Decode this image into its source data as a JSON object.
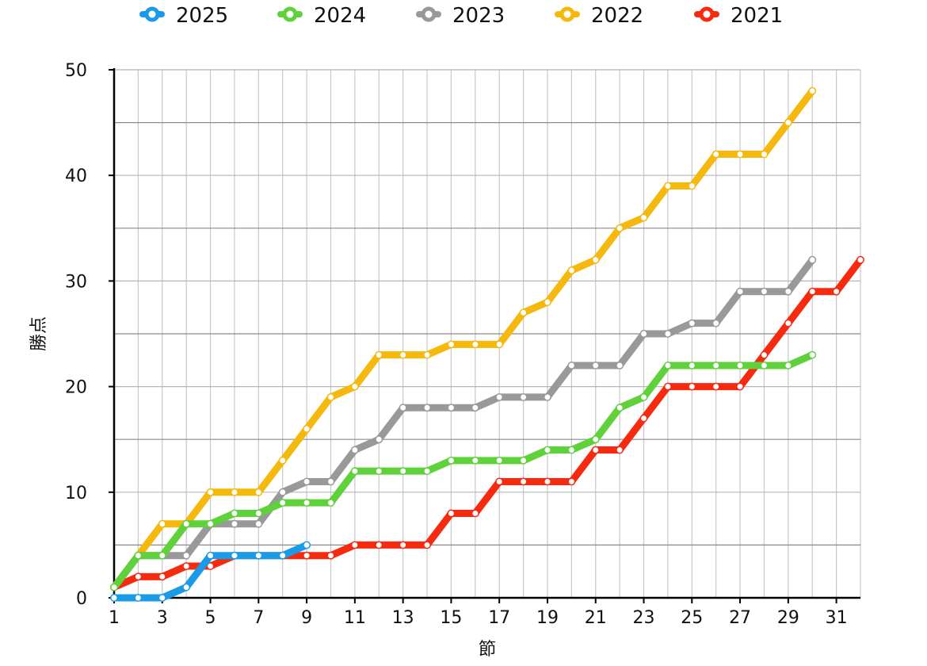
{
  "chart_data": {
    "type": "line",
    "xlabel": "節",
    "ylabel": "勝点",
    "xlim": [
      1,
      32
    ],
    "ylim": [
      0,
      50
    ],
    "y_ticks": [
      "0",
      "10",
      "20",
      "30",
      "40",
      "50"
    ],
    "x_ticks": [
      "1",
      "3",
      "5",
      "7",
      "9",
      "11",
      "13",
      "15",
      "17",
      "19",
      "21",
      "23",
      "25",
      "27",
      "29",
      "31"
    ],
    "grid": true,
    "legend_position": "top",
    "series": [
      {
        "name": "2025",
        "color": "#1a9be8",
        "values": [
          0,
          0,
          0,
          1,
          4,
          4,
          4,
          4,
          5
        ]
      },
      {
        "name": "2024",
        "color": "#5fd13a",
        "values": [
          1,
          4,
          4,
          7,
          7,
          8,
          8,
          9,
          9,
          9,
          12,
          12,
          12,
          12,
          13,
          13,
          13,
          13,
          14,
          14,
          15,
          18,
          19,
          22,
          22,
          22,
          22,
          22,
          22,
          23
        ]
      },
      {
        "name": "2023",
        "color": "#999999",
        "values": [
          1,
          4,
          4,
          4,
          7,
          7,
          7,
          10,
          11,
          11,
          14,
          15,
          18,
          18,
          18,
          18,
          19,
          19,
          19,
          22,
          22,
          22,
          25,
          25,
          26,
          26,
          29,
          29,
          29,
          32
        ]
      },
      {
        "name": "2022",
        "color": "#f5b80c",
        "values": [
          1,
          4,
          7,
          7,
          10,
          10,
          10,
          13,
          16,
          19,
          20,
          23,
          23,
          23,
          24,
          24,
          24,
          27,
          28,
          31,
          32,
          35,
          36,
          39,
          39,
          42,
          42,
          42,
          45,
          48
        ]
      },
      {
        "name": "2021",
        "color": "#f52a0f",
        "values": [
          1,
          2,
          2,
          3,
          3,
          4,
          4,
          4,
          4,
          4,
          5,
          5,
          5,
          5,
          8,
          8,
          11,
          11,
          11,
          11,
          14,
          14,
          17,
          20,
          20,
          20,
          20,
          23,
          26,
          29,
          29,
          32
        ]
      }
    ]
  }
}
